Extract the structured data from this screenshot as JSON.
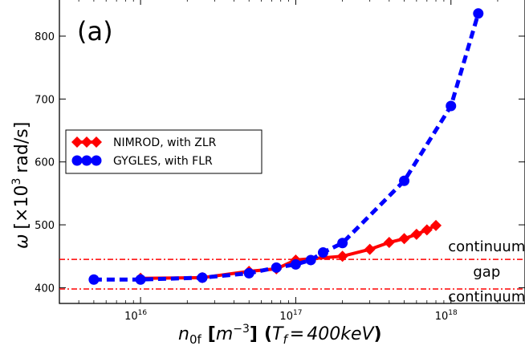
{
  "chart_data": {
    "type": "line",
    "panel_label": "(a)",
    "xlabel_parts": {
      "var": "n",
      "sub": "0f",
      "unit_open": "[",
      "unit_m": "m",
      "unit_exp": "−3",
      "unit_close": "]",
      "paren_open": "(",
      "T": "T",
      "Tsub": "f",
      "eq": "=",
      "tval": "400keV",
      "paren_close": ")"
    },
    "ylabel_parts": {
      "omega": "ω",
      "bracket_open": "[",
      "times": "×",
      "base": "10",
      "exp": "3",
      "unit": "rad/s",
      "bracket_close": "]"
    },
    "xscale": "log",
    "xlim": [
      3000000000000000.0,
      3e+18
    ],
    "ylim": [
      375,
      860
    ],
    "xticks": [
      {
        "value": 1e+16,
        "base": "10",
        "exp": "16"
      },
      {
        "value": 1e+17,
        "base": "10",
        "exp": "17"
      },
      {
        "value": 1e+18,
        "base": "10",
        "exp": "18"
      }
    ],
    "yticks": [
      400,
      500,
      600,
      700,
      800
    ],
    "series": [
      {
        "name": "NIMROD, with ZLR",
        "color": "#ff0000",
        "marker": "diamond",
        "line_style": "solid",
        "x": [
          1e+16,
          2.5e+16,
          5e+16,
          7.5e+16,
          1e+17,
          2e+17,
          3e+17,
          4e+17,
          5e+17,
          6e+17,
          7e+17,
          8e+17
        ],
        "y": [
          415,
          416,
          426,
          430,
          444,
          450,
          461,
          472,
          478,
          485,
          492,
          499
        ]
      },
      {
        "name": "GYGLES, with FLR",
        "color": "#0000ff",
        "marker": "circle",
        "line_style": "dashed",
        "x": [
          5000000000000000.0,
          1e+16,
          2.5e+16,
          5e+16,
          7.5e+16,
          1e+17,
          1.25e+17,
          1.5e+17,
          2e+17,
          5e+17,
          1e+18,
          1.5e+18
        ],
        "y": [
          413,
          413,
          416,
          423,
          432,
          437,
          444,
          456,
          471,
          570,
          689,
          836
        ]
      }
    ],
    "hlines": [
      {
        "y": 445,
        "color": "#ff0000",
        "style": "dashdot"
      },
      {
        "y": 398,
        "color": "#ff0000",
        "style": "dashdot"
      }
    ],
    "annotations": [
      {
        "text": "continuum",
        "x": 1.7e+18,
        "y": 458
      },
      {
        "text": "gap",
        "x": 1.7e+18,
        "y": 418
      },
      {
        "text": "continuum",
        "x": 1.7e+18,
        "y": 378
      }
    ],
    "legend": "upper-left",
    "grid": false
  }
}
